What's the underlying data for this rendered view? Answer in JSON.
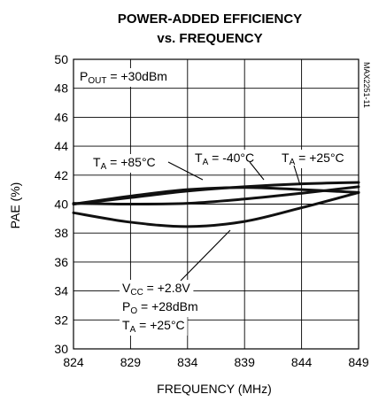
{
  "chart_data": {
    "type": "line",
    "title_line1": "POWER-ADDED EFFICIENCY",
    "title_line2": "vs. FREQUENCY",
    "xlabel": "FREQUENCY (MHz)",
    "ylabel": "PAE (%)",
    "xlim": [
      824,
      849
    ],
    "ylim": [
      30,
      50
    ],
    "xticks": [
      "824",
      "829",
      "834",
      "839",
      "844",
      "849"
    ],
    "yticks": [
      "30",
      "32",
      "34",
      "36",
      "38",
      "40",
      "42",
      "44",
      "46",
      "48",
      "50"
    ],
    "grid": true,
    "side_code": "MAX2251-11",
    "conditions_box": {
      "main": "P",
      "sub": "OUT",
      "rest": " = +30dBm"
    },
    "annotations": [
      {
        "id": "ta85",
        "main": "T",
        "sub": "A",
        "rest": " = +85°C"
      },
      {
        "id": "ta-40",
        "main": "T",
        "sub": "A",
        "rest": " = -40°C"
      },
      {
        "id": "ta25",
        "main": "T",
        "sub": "A",
        "rest": " = +25°C"
      },
      {
        "id": "vcc",
        "main": "V",
        "sub": "CC",
        "rest": " = +2.8V"
      },
      {
        "id": "po",
        "main": "P",
        "sub": "O",
        "rest": " = +28dBm"
      },
      {
        "id": "ta25b",
        "main": "T",
        "sub": "A",
        "rest": " = +25°C"
      }
    ],
    "series": [
      {
        "name": "TA = +85°C",
        "x": [
          824,
          829,
          834,
          839,
          844,
          849
        ],
        "y": [
          40.0,
          40.45,
          40.9,
          41.2,
          41.4,
          41.5
        ]
      },
      {
        "name": "TA = -40°C",
        "x": [
          824,
          829,
          834,
          839,
          844,
          849
        ],
        "y": [
          40.05,
          40.0,
          40.05,
          40.35,
          40.75,
          41.2
        ]
      },
      {
        "name": "TA = +25°C",
        "x": [
          824,
          829,
          834,
          839,
          844,
          849
        ],
        "y": [
          40.0,
          40.55,
          41.0,
          41.15,
          41.0,
          40.8
        ]
      },
      {
        "name": "VCC = +2.8V, PO = +28dBm, TA = +25°C",
        "x": [
          824,
          829,
          834,
          839,
          844,
          849
        ],
        "y": [
          39.4,
          38.75,
          38.45,
          38.8,
          39.75,
          40.8
        ]
      }
    ]
  }
}
